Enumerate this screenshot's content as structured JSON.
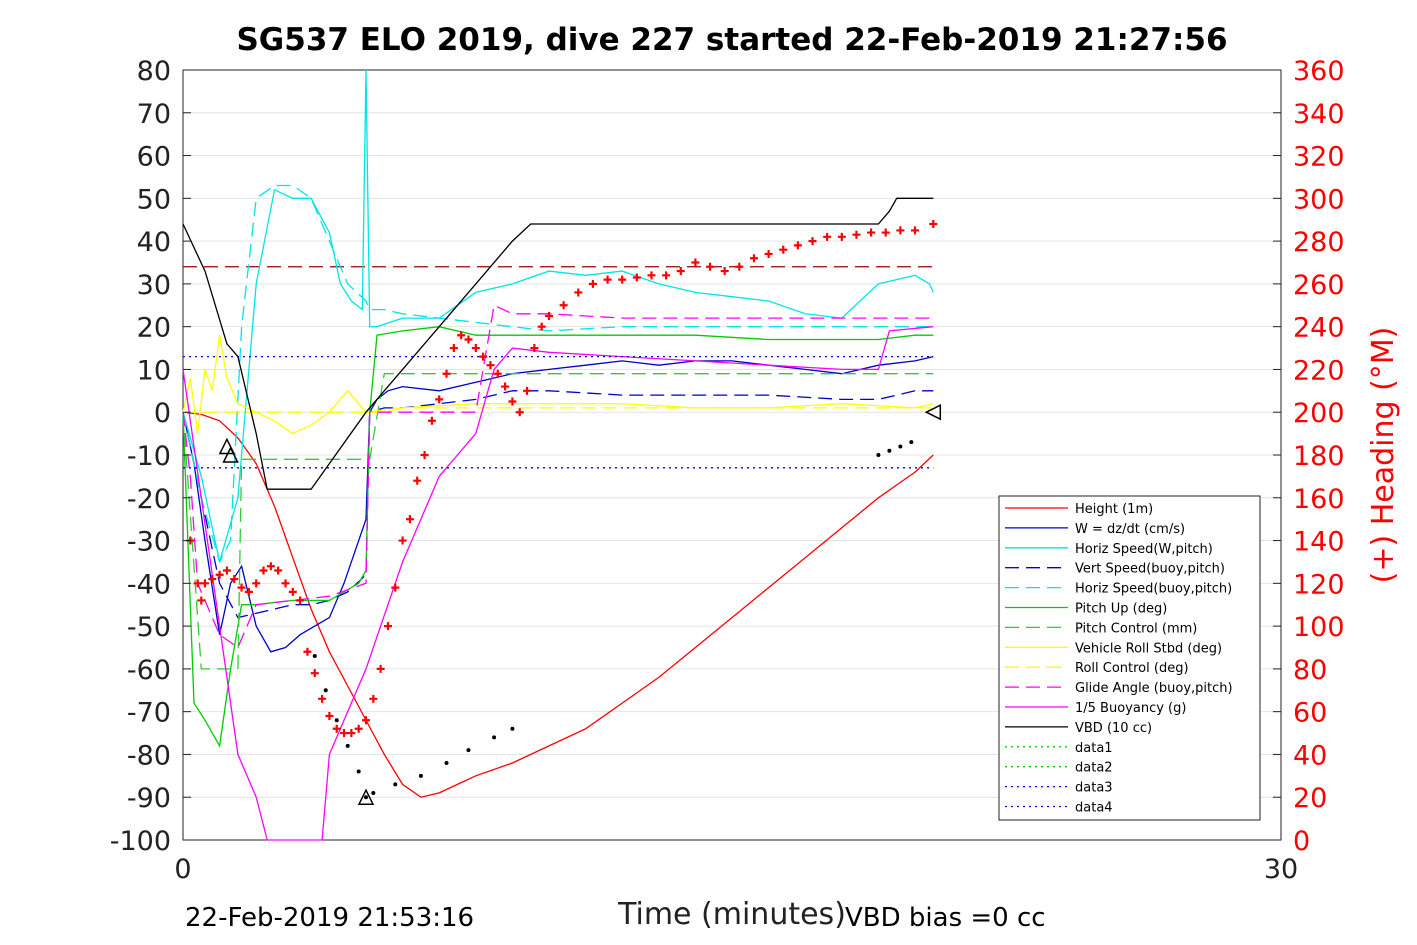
{
  "chart_data": {
    "type": "line",
    "title": "SG537 ELO 2019, dive 227 started 22-Feb-2019 21:27:56",
    "xlabel": "Time (minutes)",
    "ylabel_right": "(+) Heading (°M)",
    "xlim": [
      0,
      30
    ],
    "ylim": [
      -100,
      80
    ],
    "ylim_right": [
      0,
      360
    ],
    "x_ticks": [
      "0",
      "30"
    ],
    "y_ticks": [
      "80",
      "70",
      "60",
      "50",
      "40",
      "30",
      "20",
      "10",
      "0",
      "-10",
      "-20",
      "-30",
      "-40",
      "-50",
      "-60",
      "-70",
      "-80",
      "-90",
      "-100"
    ],
    "y_ticks_right": [
      "360",
      "340",
      "320",
      "300",
      "280",
      "260",
      "240",
      "220",
      "200",
      "180",
      "160",
      "140",
      "120",
      "100",
      "80",
      "60",
      "40",
      "20",
      "0"
    ],
    "grid": "horizontal",
    "legend_position": "bottom-right",
    "footer_left": "22-Feb-2019 21:53:16",
    "footer_right": "VBD bias =0 cc",
    "series": [
      {
        "name": "Height (1m)",
        "color": "#ff0000",
        "style": "solid",
        "x": [
          0,
          0.5,
          1.0,
          1.5,
          2.0,
          2.5,
          3.0,
          3.5,
          4.0,
          4.5,
          5.0,
          5.5,
          6.0,
          6.5,
          7.0,
          7.5,
          8.0,
          9.0,
          10,
          11,
          12,
          13,
          14,
          15,
          16,
          17,
          18,
          19,
          20,
          20.5
        ],
        "y": [
          0,
          -0.5,
          -2,
          -6,
          -12,
          -22,
          -34,
          -46,
          -56,
          -64,
          -72,
          -80,
          -87,
          -90,
          -89,
          -87,
          -85,
          -82,
          -78,
          -74,
          -68,
          -62,
          -55,
          -48,
          -41,
          -34,
          -27,
          -20,
          -14,
          -10
        ]
      },
      {
        "name": "W = dz/dt (cm/s)",
        "color": "#0000cc",
        "style": "solid",
        "x": [
          0,
          0.3,
          0.6,
          1.0,
          1.3,
          1.6,
          2.0,
          2.4,
          2.8,
          3.2,
          3.6,
          4.0,
          4.4,
          4.8,
          5.0,
          5.1,
          5.3,
          5.6,
          6.0,
          7.0,
          8.0,
          9.0,
          10,
          11,
          12,
          13,
          14,
          15,
          16,
          17,
          18,
          19,
          20,
          20.5
        ],
        "y": [
          0,
          -12,
          -30,
          -52,
          -40,
          -36,
          -50,
          -56,
          -55,
          -52,
          -50,
          -48,
          -40,
          -30,
          -25,
          0,
          3,
          5,
          6,
          5,
          7,
          9,
          10,
          11,
          12,
          11,
          12,
          12,
          11,
          10,
          9,
          11,
          12,
          13
        ]
      },
      {
        "name": "Horiz Speed(W,pitch)",
        "color": "#00e5e5",
        "style": "solid",
        "x": [
          0,
          0.5,
          1.0,
          1.5,
          2.0,
          2.5,
          3.0,
          3.5,
          4.0,
          4.3,
          4.6,
          4.9,
          5.0,
          5.1,
          5.3,
          6.0,
          7.0,
          7.5,
          8.0,
          9.0,
          10,
          11,
          12,
          13,
          14,
          15,
          16,
          17,
          18,
          19,
          20,
          20.4,
          20.5
        ],
        "y": [
          0,
          -15,
          -35,
          -20,
          30,
          52,
          50,
          50,
          42,
          30,
          26,
          24,
          80,
          20,
          20,
          22,
          22,
          25,
          28,
          30,
          33,
          32,
          33,
          30,
          28,
          27,
          26,
          23,
          22,
          30,
          32,
          30,
          28
        ]
      },
      {
        "name": "Vert Speed(buoy,pitch)",
        "color": "#0000cc",
        "style": "dashed",
        "x": [
          0,
          0.5,
          1.0,
          1.5,
          2.0,
          2.5,
          3.0,
          3.5,
          4.0,
          4.5,
          5.0,
          5.1,
          5.5,
          6.0,
          7.0,
          8.0,
          8.5,
          9.0,
          10,
          12,
          14,
          16,
          18,
          19,
          20,
          20.5
        ],
        "y": [
          0,
          -20,
          -40,
          -48,
          -47,
          -46,
          -45,
          -45,
          -44,
          -42,
          -38,
          0,
          1,
          1,
          2,
          3,
          4,
          5,
          5,
          4,
          4,
          4,
          3,
          3,
          5,
          5
        ]
      },
      {
        "name": "Horiz Speed(buoy,pitch)",
        "color": "#00e5e5",
        "style": "dashed",
        "x": [
          0,
          0.5,
          1.0,
          1.3,
          1.6,
          2.0,
          2.5,
          3.0,
          3.5,
          4.0,
          4.5,
          5.0,
          5.1,
          5.5,
          6.0,
          7.0,
          8.0,
          9.0,
          10,
          12,
          14,
          16,
          18,
          20,
          20.5
        ],
        "y": [
          0,
          -20,
          -35,
          -30,
          20,
          50,
          53,
          53,
          50,
          40,
          30,
          26,
          24,
          24,
          23,
          22,
          21,
          20,
          19,
          20,
          20,
          20,
          20,
          20,
          20
        ]
      },
      {
        "name": "Pitch Up (deg)",
        "color": "#00cc00",
        "style": "solid",
        "x": [
          0,
          0.3,
          0.6,
          1.0,
          1.3,
          1.6,
          2.0,
          3.0,
          4.0,
          4.8,
          5.0,
          5.1,
          5.3,
          6.0,
          7.0,
          8.0,
          9.0,
          10,
          12,
          14,
          16,
          18,
          19,
          20,
          20.5
        ],
        "y": [
          0,
          -68,
          -72,
          -78,
          -60,
          -45,
          -45,
          -44,
          -44,
          -40,
          -37,
          0,
          18,
          19,
          20,
          18,
          18,
          18,
          18,
          18,
          17,
          17,
          17,
          18,
          18
        ]
      },
      {
        "name": "Pitch Control (mm)",
        "color": "#33cc33",
        "style": "dashed",
        "x": [
          0,
          0.5,
          1.0,
          1.5,
          1.6,
          2.0,
          3.0,
          4.0,
          5.0,
          5.1,
          5.5,
          6.0,
          8.0,
          10,
          12,
          14,
          16,
          18,
          20,
          20.5
        ],
        "y": [
          0,
          -60,
          -60,
          -60,
          -11,
          -11,
          -11,
          -11,
          -11,
          -11,
          9,
          9,
          9,
          9,
          9,
          9,
          9,
          9,
          9,
          9
        ]
      },
      {
        "name": "Vehicle Roll Stbd (deg)",
        "color": "#ffff00",
        "style": "solid",
        "x": [
          0,
          0.2,
          0.4,
          0.6,
          0.8,
          1.0,
          1.2,
          1.5,
          2.0,
          2.5,
          3.0,
          3.5,
          4.0,
          4.5,
          5.0,
          5.5,
          6.0,
          8.0,
          10,
          12,
          14,
          16,
          18,
          20,
          20.5
        ],
        "y": [
          0,
          8,
          -5,
          10,
          5,
          18,
          8,
          2,
          0,
          -2,
          -5,
          -3,
          0,
          5,
          0,
          0,
          1,
          2,
          2,
          2,
          1,
          1,
          2,
          1,
          2
        ]
      },
      {
        "name": "Roll Control (deg)",
        "color": "#ffff00",
        "style": "dashed",
        "x": [
          0,
          1,
          2,
          3,
          4,
          5,
          6,
          8,
          10,
          12,
          14,
          16,
          18,
          20,
          20.5
        ],
        "y": [
          0,
          0,
          0,
          0,
          0,
          0,
          1,
          1,
          1,
          1,
          1,
          1,
          1,
          1,
          1
        ]
      },
      {
        "name": "Glide Angle (buoy,pitch)",
        "color": "#ff00ff",
        "style": "dashed",
        "x": [
          0,
          0.2,
          0.4,
          1.0,
          1.5,
          2.0,
          3.0,
          4.0,
          5.0,
          5.1,
          5.5,
          6.0,
          7.0,
          8.0,
          8.5,
          9.0,
          10,
          12,
          14,
          16,
          18,
          20,
          20.5
        ],
        "y": [
          0,
          -15,
          -40,
          -52,
          -55,
          -45,
          -44,
          -43,
          -40,
          0,
          0,
          0,
          0,
          0,
          25,
          23,
          23,
          22,
          22,
          22,
          22,
          22,
          22
        ]
      },
      {
        "name": "1/5 Buoyancy (g)",
        "color": "#ff00ff",
        "style": "solid",
        "x": [
          0,
          0.5,
          1.0,
          1.5,
          2.0,
          2.3,
          3.0,
          3.5,
          3.8,
          4.0,
          5.0,
          6.0,
          7.0,
          7.5,
          8.0,
          8.5,
          9.0,
          10,
          12,
          14,
          16,
          18,
          19,
          19.3,
          20.5
        ],
        "y": [
          10,
          -20,
          -50,
          -80,
          -90,
          -100,
          -100,
          -100,
          -100,
          -80,
          -60,
          -35,
          -15,
          -10,
          -5,
          10,
          15,
          14,
          13,
          12,
          11,
          10,
          10,
          19,
          20
        ]
      },
      {
        "name": "VBD (10 cc)",
        "color": "#000000",
        "style": "solid",
        "x": [
          0,
          0.6,
          1.2,
          1.5,
          2.0,
          2.3,
          3.0,
          3.5,
          5.0,
          6.0,
          7.0,
          8.0,
          9.0,
          9.5,
          10,
          11,
          12,
          14,
          16,
          18,
          19,
          19.3,
          19.5,
          20,
          20.5
        ],
        "y": [
          44,
          33,
          16,
          13,
          -5,
          -18,
          -18,
          -18,
          0,
          10,
          20,
          30,
          40,
          44,
          44,
          44,
          44,
          44,
          44,
          44,
          44,
          47,
          50,
          50,
          50
        ]
      },
      {
        "name": "data1",
        "color": "#00cc00",
        "style": "dotted",
        "x": [],
        "y": []
      },
      {
        "name": "data2",
        "color": "#00cc00",
        "style": "dotted",
        "x": [],
        "y": []
      },
      {
        "name": "data3",
        "color": "#0000cc",
        "style": "dotted",
        "x": [
          0,
          20.5
        ],
        "y": [
          13,
          13
        ]
      },
      {
        "name": "data4",
        "color": "#0000cc",
        "style": "dotted",
        "x": [
          0,
          20.5
        ],
        "y": [
          -13,
          -13
        ]
      }
    ],
    "reference_line": {
      "color": "#990000",
      "style": "dashed",
      "y": 34
    },
    "heading": {
      "color": "#ff0000",
      "marker": "+",
      "axis": "right",
      "x": [
        0.2,
        0.4,
        0.5,
        0.6,
        0.8,
        1.0,
        1.2,
        1.4,
        1.6,
        1.8,
        2.0,
        2.2,
        2.4,
        2.6,
        2.8,
        3.0,
        3.2,
        3.4,
        3.6,
        3.8,
        4.0,
        4.2,
        4.4,
        4.6,
        4.8,
        5.0,
        5.2,
        5.4,
        5.6,
        5.8,
        6.0,
        6.2,
        6.4,
        6.6,
        6.8,
        7.0,
        7.2,
        7.4,
        7.6,
        7.8,
        8.0,
        8.2,
        8.4,
        8.6,
        8.8,
        9.0,
        9.2,
        9.4,
        9.6,
        9.8,
        10.0,
        10.4,
        10.8,
        11.2,
        11.6,
        12.0,
        12.4,
        12.8,
        13.2,
        13.6,
        14.0,
        14.4,
        14.8,
        15.2,
        15.6,
        16.0,
        16.4,
        16.8,
        17.2,
        17.6,
        18.0,
        18.4,
        18.8,
        19.2,
        19.6,
        20.0,
        20.5
      ],
      "y": [
        140,
        120,
        112,
        120,
        122,
        124,
        126,
        122,
        118,
        116,
        120,
        126,
        128,
        126,
        120,
        116,
        112,
        88,
        78,
        66,
        58,
        52,
        50,
        50,
        52,
        56,
        66,
        80,
        100,
        118,
        140,
        150,
        168,
        180,
        196,
        206,
        218,
        230,
        236,
        234,
        230,
        226,
        222,
        218,
        212,
        205,
        200,
        210,
        230,
        240,
        245,
        250,
        256,
        260,
        262,
        262,
        263,
        264,
        264,
        266,
        270,
        268,
        266,
        268,
        272,
        274,
        276,
        278,
        280,
        282,
        282,
        283,
        284,
        284,
        285,
        285,
        288
      ]
    },
    "markers": [
      {
        "type": "triangle-up",
        "x": 1.2,
        "y": -8
      },
      {
        "type": "triangle-up",
        "x": 1.3,
        "y": -10
      },
      {
        "type": "triangle-up",
        "x": 5.0,
        "y": -90
      },
      {
        "type": "triangle-left",
        "x": 20.5,
        "y": 0
      }
    ],
    "black_dot_segments": [
      {
        "x": [
          3.6,
          3.9,
          4.2,
          4.5,
          4.8,
          5.0
        ],
        "y": [
          -57,
          -65,
          -72,
          -78,
          -84,
          -90
        ]
      },
      {
        "x": [
          5.2,
          5.8,
          6.5,
          7.2,
          7.8,
          8.5,
          9.0
        ],
        "y": [
          -89,
          -87,
          -85,
          -82,
          -79,
          -76,
          -74
        ]
      },
      {
        "x": [
          19.0,
          19.3,
          19.6,
          19.9
        ],
        "y": [
          -10,
          -9,
          -8,
          -7
        ]
      }
    ]
  }
}
